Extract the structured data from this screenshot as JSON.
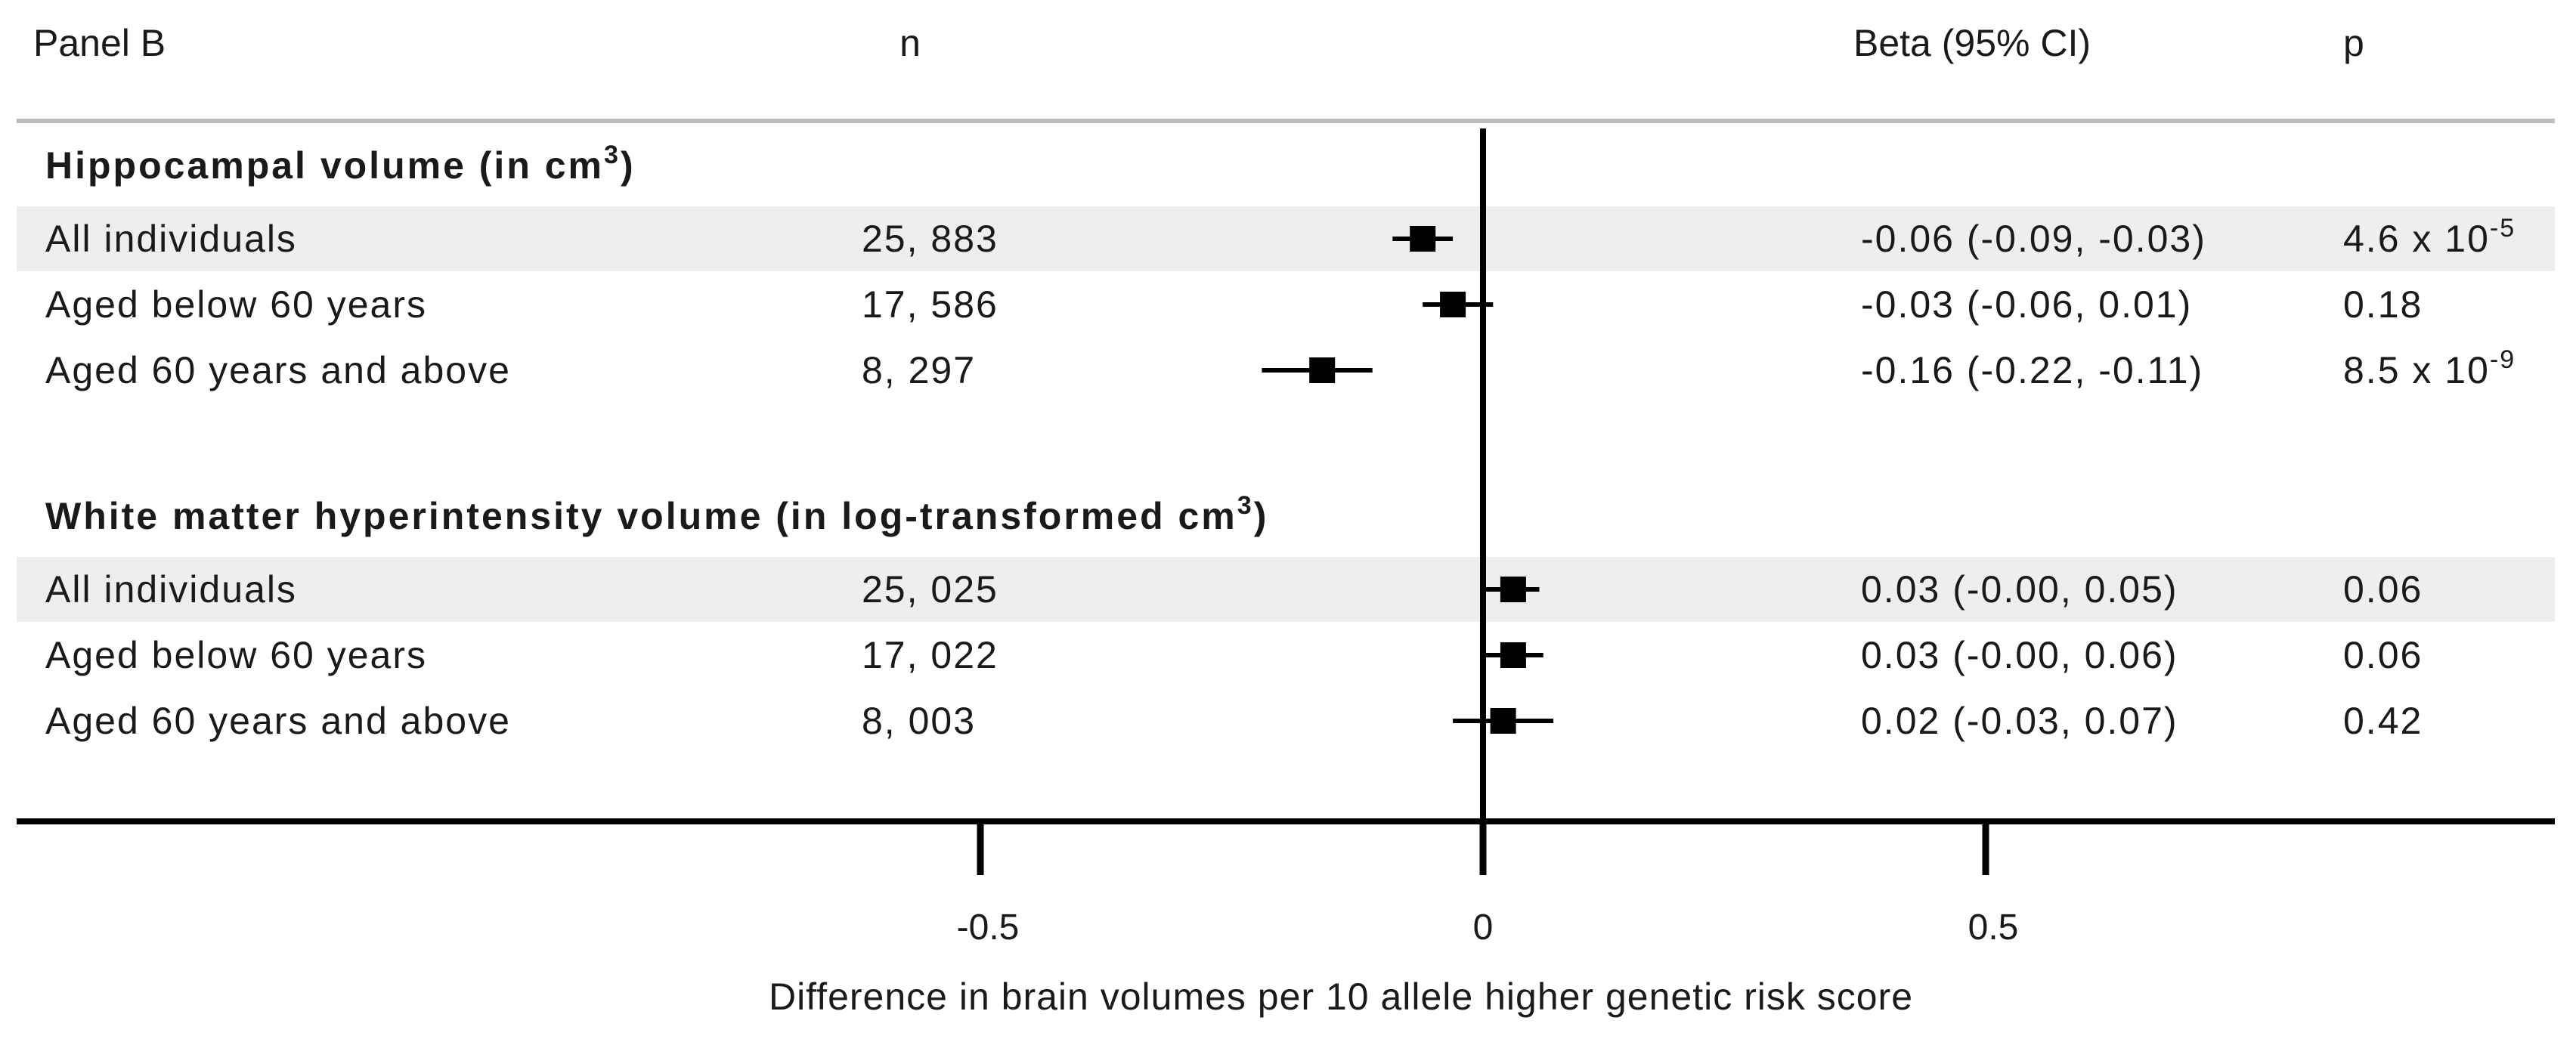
{
  "chart_data": {
    "type": "forest",
    "panel_label": "Panel B",
    "columns": {
      "n": "n",
      "beta": "Beta (95% CI)",
      "p": "p"
    },
    "sections": [
      {
        "title": "Hippocampal volume (in cm",
        "title_sup": "3",
        "title_end": ")",
        "rows": [
          {
            "label": "All individuals",
            "n": "25, 883",
            "beta": -0.06,
            "lo": -0.09,
            "hi": -0.03,
            "ci_text": "-0.06 (-0.09, -0.03)",
            "p_base": "4.6 x 10",
            "p_exp": "-5",
            "shaded": true
          },
          {
            "label": "Aged below 60 years",
            "n": "17, 586",
            "beta": -0.03,
            "lo": -0.06,
            "hi": 0.01,
            "ci_text": "-0.03 (-0.06, 0.01)",
            "p_base": "0.18",
            "p_exp": "",
            "shaded": false
          },
          {
            "label": "Aged 60 years and above",
            "n": "8, 297",
            "beta": -0.16,
            "lo": -0.22,
            "hi": -0.11,
            "ci_text": "-0.16 (-0.22, -0.11)",
            "p_base": "8.5 x 10",
            "p_exp": "-9",
            "shaded": false
          }
        ]
      },
      {
        "title": "White matter hyperintensity volume (in log-transformed cm",
        "title_sup": "3",
        "title_end": ")",
        "rows": [
          {
            "label": "All individuals",
            "n": "25, 025",
            "beta": 0.03,
            "lo": 0.0,
            "hi": 0.05,
            "ci_text": "0.03 (-0.00, 0.05)",
            "p_base": "0.06",
            "p_exp": "",
            "shaded": true
          },
          {
            "label": "Aged below 60 years",
            "n": "17, 022",
            "beta": 0.03,
            "lo": 0.0,
            "hi": 0.06,
            "ci_text": "0.03 (-0.00, 0.06)",
            "p_base": "0.06",
            "p_exp": "",
            "shaded": false
          },
          {
            "label": "Aged 60 years and above",
            "n": "8, 003",
            "beta": 0.02,
            "lo": -0.03,
            "hi": 0.07,
            "ci_text": "0.02 (-0.03, 0.07)",
            "p_base": "0.42",
            "p_exp": "",
            "shaded": false
          }
        ]
      }
    ],
    "x_ticks": [
      -0.5,
      0,
      0.5
    ],
    "x_tick_labels": [
      "-0.5",
      "0",
      "0.5"
    ],
    "xlabel": "Difference in brain volumes per 10 allele higher genetic risk score",
    "colors": {
      "marker": "#000000",
      "shade": "#eeeeee",
      "header_rule": "#bdbdbd",
      "axis": "#000000"
    }
  }
}
